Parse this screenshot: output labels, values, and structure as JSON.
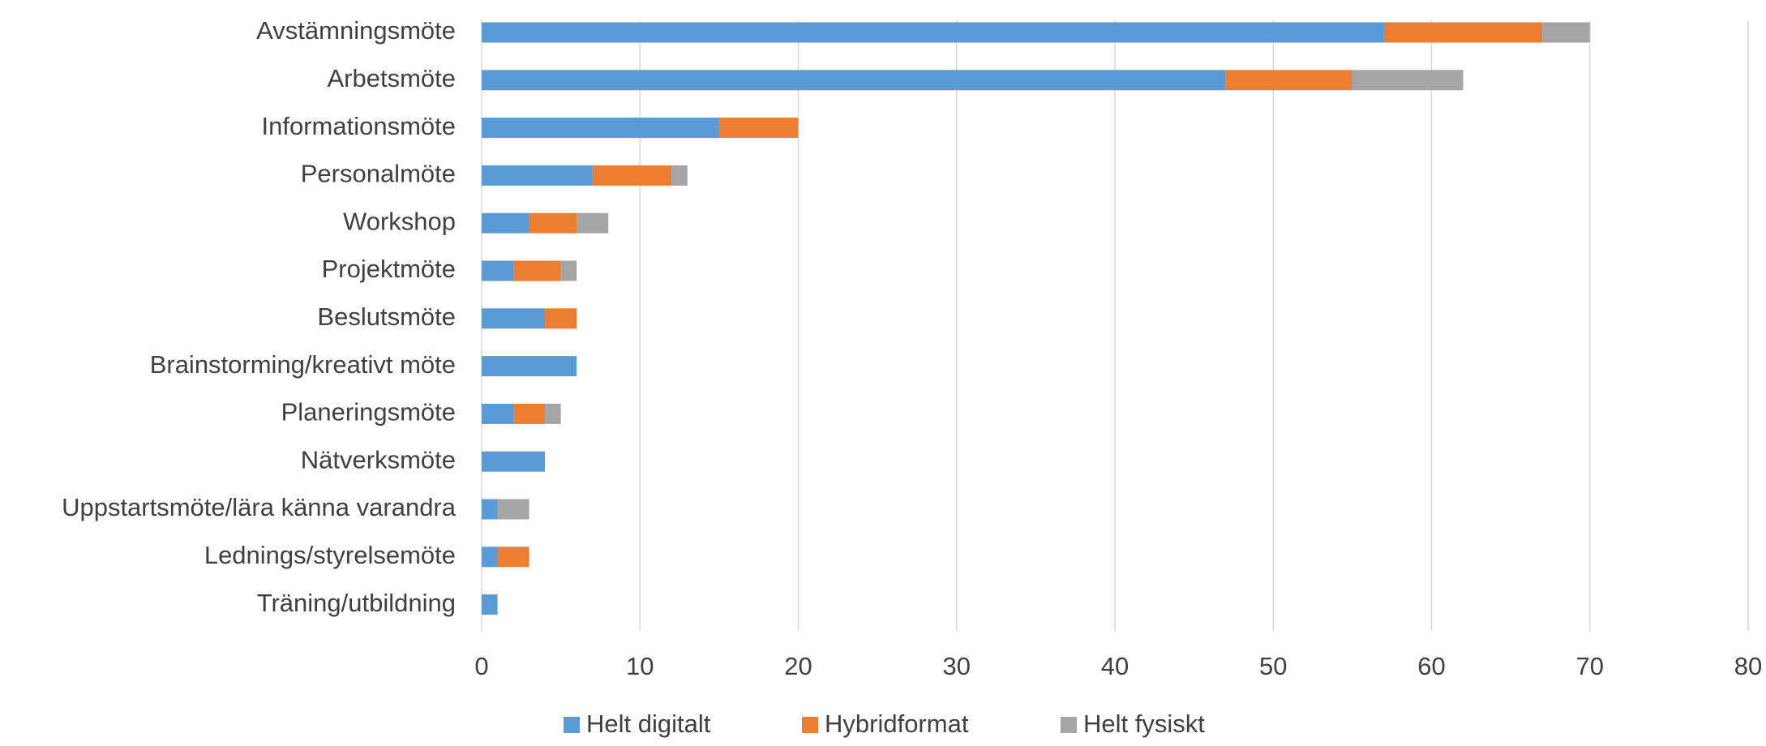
{
  "chart_data": {
    "type": "stacked_barh",
    "categories": [
      "Avstämningsmöte",
      "Arbetsmöte",
      "Informationsmöte",
      "Personalmöte",
      "Workshop",
      "Projektmöte",
      "Beslutsmöte",
      "Brainstorming/kreativt möte",
      "Planeringsmöte",
      "Nätverksmöte",
      "Uppstartsmöte/lära känna varandra",
      "Lednings/styrelsemöte",
      "Träning/utbildning"
    ],
    "series": [
      {
        "name": "Helt digitalt",
        "color": "#5b9bd5",
        "values": [
          57,
          47,
          15,
          7,
          3,
          2,
          4,
          6,
          2,
          4,
          1,
          1,
          1
        ]
      },
      {
        "name": "Hybridformat",
        "color": "#ed7d31",
        "values": [
          10,
          8,
          5,
          5,
          3,
          3,
          2,
          0,
          2,
          0,
          0,
          2,
          0
        ]
      },
      {
        "name": "Helt fysiskt",
        "color": "#a5a5a5",
        "values": [
          3,
          7,
          0,
          1,
          2,
          1,
          0,
          0,
          1,
          0,
          2,
          0,
          0
        ]
      }
    ],
    "xlim": [
      0,
      80
    ],
    "xticks": [
      0,
      10,
      20,
      30,
      40,
      50,
      60,
      70,
      80
    ],
    "grid": true,
    "legend": "bottom"
  }
}
